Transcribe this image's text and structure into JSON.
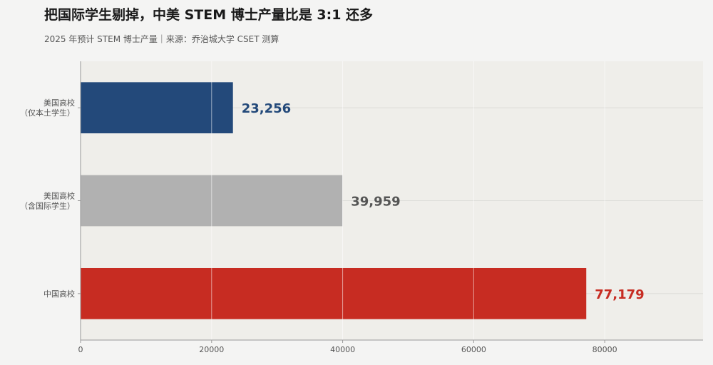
{
  "title": "把国际学生剔掉，中美 STEM 博士产量比是 3:1 还多",
  "subtitle": "2025 年预计 STEM 博士产量｜来源：乔治城大学 CSET 测算",
  "colors": {
    "plot_bg": "#efeeea",
    "grid": "#dcdcd8",
    "axis": "#999999",
    "tick_text": "#555555"
  },
  "chart_data": {
    "type": "bar",
    "orientation": "horizontal",
    "title": "把国际学生剔掉，中美 STEM 博士产量比是 3:1 还多",
    "subtitle": "2025 年预计 STEM 博士产量｜来源：乔治城大学 CSET 测算",
    "xlabel": "",
    "ylabel": "",
    "xlim": [
      0,
      95000
    ],
    "xticks": [
      0,
      20000,
      40000,
      60000,
      80000
    ],
    "xtick_labels": [
      "0",
      "20000",
      "40000",
      "60000",
      "80000"
    ],
    "grid": true,
    "categories": [
      [
        "美国高校",
        "（仅本土学生）"
      ],
      [
        "美国高校",
        "（含国际学生）"
      ],
      [
        "中国高校"
      ]
    ],
    "values": [
      23256,
      39959,
      77179
    ],
    "value_labels": [
      "23,256",
      "39,959",
      "77,179"
    ],
    "bar_colors": [
      "#23497a",
      "#b1b1b1",
      "#c72c22"
    ],
    "label_colors": [
      "#23497a",
      "#555555",
      "#c72c22"
    ]
  }
}
